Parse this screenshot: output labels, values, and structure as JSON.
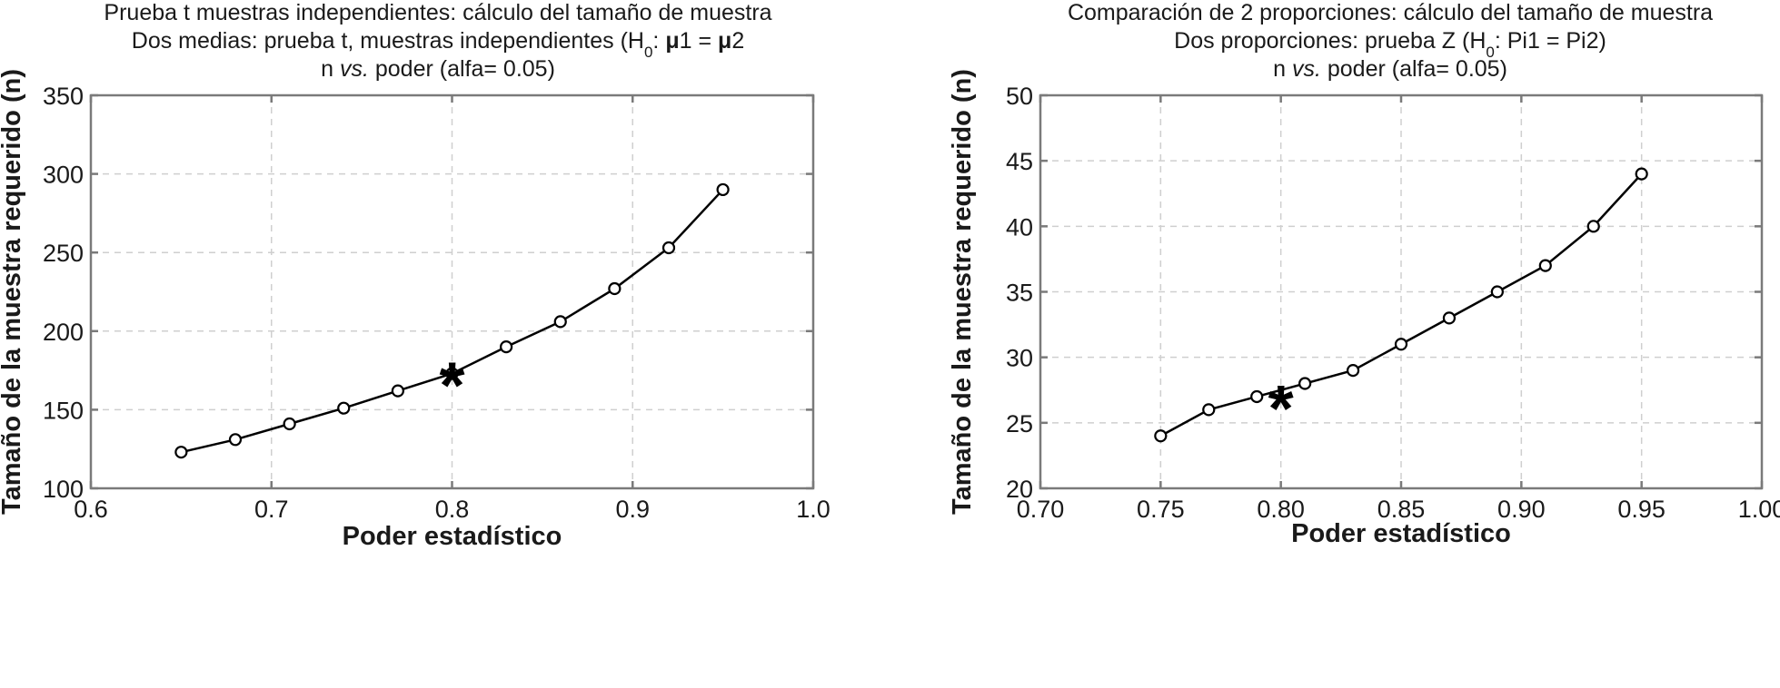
{
  "chart_data": [
    {
      "type": "line",
      "title_lines": [
        [
          {
            "t": "Prueba t muestras independientes: cálculo del tamaño de muestra"
          }
        ],
        [
          {
            "t": "Dos medias: prueba t, muestras independientes (H"
          },
          {
            "t": "0",
            "sub": true
          },
          {
            "t": ": "
          },
          {
            "t": "μ",
            "bold": true
          },
          {
            "t": "1 = "
          },
          {
            "t": "μ",
            "bold": true
          },
          {
            "t": "2"
          }
        ],
        [
          {
            "t": "n "
          },
          {
            "t": "vs.",
            "italic": true
          },
          {
            "t": " poder (alfa= 0.05)"
          }
        ]
      ],
      "xlabel": "Poder estadístico",
      "ylabel": "Tamaño de la muestra requerido (n)",
      "xlim": [
        0.6,
        1.0
      ],
      "ylim": [
        100,
        350
      ],
      "x_ticks": [
        "0.6",
        "0.7",
        "0.8",
        "0.9",
        "1.0"
      ],
      "y_ticks": [
        "100",
        "150",
        "200",
        "250",
        "300",
        "350"
      ],
      "grid": true,
      "x": [
        0.65,
        0.68,
        0.71,
        0.74,
        0.77,
        0.8,
        0.83,
        0.86,
        0.89,
        0.92,
        0.95
      ],
      "y": [
        123,
        131,
        141,
        151,
        162,
        173,
        190,
        206,
        227,
        253,
        290
      ],
      "highlight": {
        "x": 0.8,
        "y": 173,
        "marker": "*"
      }
    },
    {
      "type": "line",
      "title_lines": [
        [
          {
            "t": "Comparación de 2 proporciones: cálculo del tamaño de muestra"
          }
        ],
        [
          {
            "t": "Dos proporciones: prueba Z (H"
          },
          {
            "t": "0",
            "sub": true
          },
          {
            "t": ": Pi1 = Pi2)"
          }
        ],
        [
          {
            "t": "n "
          },
          {
            "t": "vs.",
            "italic": true
          },
          {
            "t": " poder (alfa= 0.05)"
          }
        ]
      ],
      "xlabel": "Poder estadístico",
      "ylabel": "Tamaño de la muestra requerido (n)",
      "xlim": [
        0.7,
        1.0
      ],
      "ylim": [
        20,
        50
      ],
      "x_ticks": [
        "0.70",
        "0.75",
        "0.80",
        "0.85",
        "0.90",
        "0.95",
        "1.00"
      ],
      "y_ticks": [
        "20",
        "25",
        "30",
        "35",
        "40",
        "45",
        "50"
      ],
      "grid": true,
      "x": [
        0.75,
        0.77,
        0.79,
        0.81,
        0.83,
        0.85,
        0.87,
        0.89,
        0.91,
        0.93,
        0.95
      ],
      "y": [
        24,
        26,
        27,
        28,
        29,
        31,
        33,
        35,
        37,
        40,
        44
      ],
      "highlight": {
        "x": 0.8,
        "y": 27,
        "marker": "*"
      }
    }
  ]
}
